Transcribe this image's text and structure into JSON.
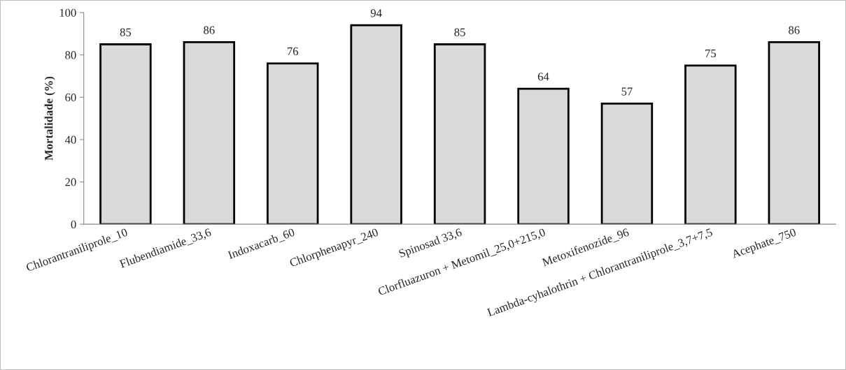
{
  "chart_data": {
    "type": "bar",
    "categories": [
      "Chlorantraniliprole_10",
      "Flubendiamide_33,6",
      "Indoxacarb_60",
      "Chlorphenapyr_240",
      "Spinosad 33,6",
      "Clorfluazuron + Metomil_25,0+215,0",
      "Metoxifenozide_96",
      "Lambda-cyhalothrin + Chlorantraniliprole_3,7+7,5",
      "Acephate_750"
    ],
    "values": [
      85,
      86,
      76,
      94,
      85,
      64,
      57,
      75,
      86
    ],
    "color": "#d9d9d9",
    "ylabel": "Mortalidade (%)",
    "ylim": [
      0,
      100
    ],
    "yticks": [
      0,
      20,
      40,
      60,
      80,
      100
    ],
    "data_labels": true,
    "grid": false,
    "legend": false
  }
}
